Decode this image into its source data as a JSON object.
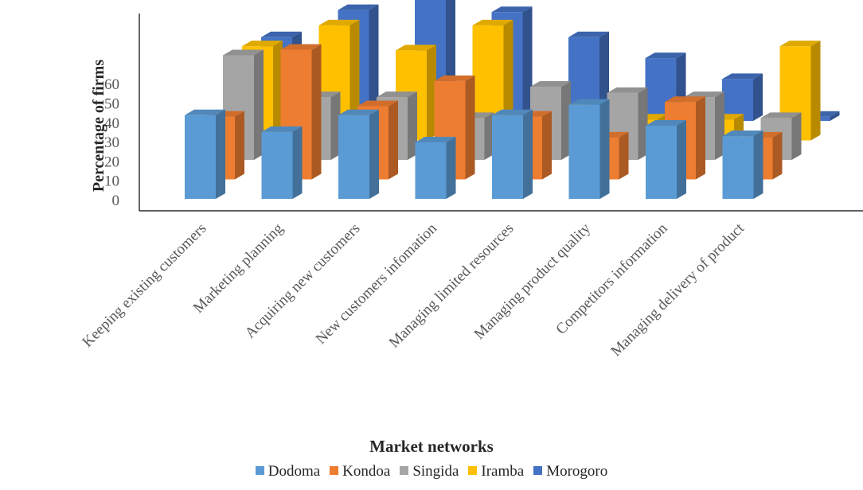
{
  "chart_data": {
    "type": "bar",
    "xlabel": "Market networks",
    "ylabel": "Percentage of firms",
    "y_ticks": [
      "0",
      "10",
      "20",
      "30",
      "40",
      "50",
      "60"
    ],
    "ylim": [
      0,
      60
    ],
    "categories": [
      "Keeping existing customers",
      "Marketing planning",
      "Acquiring new customers",
      "New customers infomation",
      "Managing limited resources",
      "Managing product quality",
      "Competitors information",
      "Managing delivery of product"
    ],
    "series": [
      {
        "name": "Dodoma",
        "color": "#5B9BD5",
        "values": [
          40,
          32,
          40,
          27,
          40,
          45,
          35,
          30
        ]
      },
      {
        "name": "Kondoa",
        "color": "#ED7D31",
        "values": [
          30,
          62,
          35,
          47,
          30,
          20,
          37,
          20
        ]
      },
      {
        "name": "Singida",
        "color": "#A5A5A5",
        "values": [
          50,
          30,
          30,
          20,
          35,
          32,
          30,
          20
        ]
      },
      {
        "name": "Iramba",
        "color": "#FFC000",
        "values": [
          45,
          55,
          43,
          55,
          15,
          10,
          10,
          45
        ]
      },
      {
        "name": "Morogoro",
        "color": "#4472C4",
        "values": [
          40,
          53,
          65,
          52,
          40,
          30,
          20,
          2
        ]
      }
    ],
    "legend_position": "bottom",
    "grid": false
  }
}
